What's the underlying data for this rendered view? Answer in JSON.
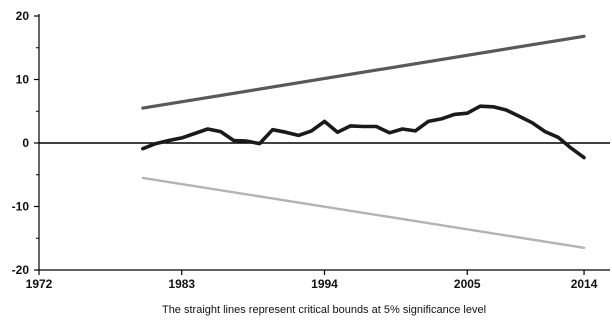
{
  "chart_data": {
    "type": "line",
    "caption": "The straight lines represent critical bounds at 5% significance level",
    "xlim": [
      1972,
      2016
    ],
    "ylim": [
      -20,
      20
    ],
    "x_ticks": [
      1972,
      1983,
      1994,
      2005,
      2014
    ],
    "y_ticks": [
      20,
      10,
      0,
      -10,
      -20
    ],
    "zero_line": true,
    "grid": false,
    "legend": "none",
    "colors": {
      "main": "#1a1a1a",
      "upper_bound": "#595959",
      "lower_bound": "#b3b3b3",
      "axis": "#000000"
    },
    "series": [
      {
        "key": "cusum",
        "x": [
          1980,
          1981,
          1982,
          1983,
          1984,
          1985,
          1986,
          1987,
          1988,
          1989,
          1990,
          1991,
          1992,
          1993,
          1994,
          1995,
          1996,
          1997,
          1998,
          1999,
          2000,
          2001,
          2002,
          2003,
          2004,
          2005,
          2006,
          2007,
          2008,
          2009,
          2010,
          2011,
          2012,
          2013,
          2014
        ],
        "y": [
          -0.9,
          -0.1,
          0.4,
          0.8,
          1.5,
          2.2,
          1.8,
          0.4,
          0.3,
          -0.1,
          2.1,
          1.7,
          1.2,
          1.9,
          3.4,
          1.7,
          2.7,
          2.6,
          2.6,
          1.6,
          2.2,
          1.9,
          3.4,
          3.8,
          4.5,
          4.7,
          5.8,
          5.7,
          5.2,
          4.2,
          3.2,
          1.8,
          0.9,
          -0.8,
          -2.3
        ]
      },
      {
        "key": "upper_bound",
        "x": [
          1980,
          2014
        ],
        "y": [
          5.5,
          16.8
        ]
      },
      {
        "key": "lower_bound",
        "x": [
          1980,
          2014
        ],
        "y": [
          -5.5,
          -16.5
        ]
      }
    ]
  }
}
